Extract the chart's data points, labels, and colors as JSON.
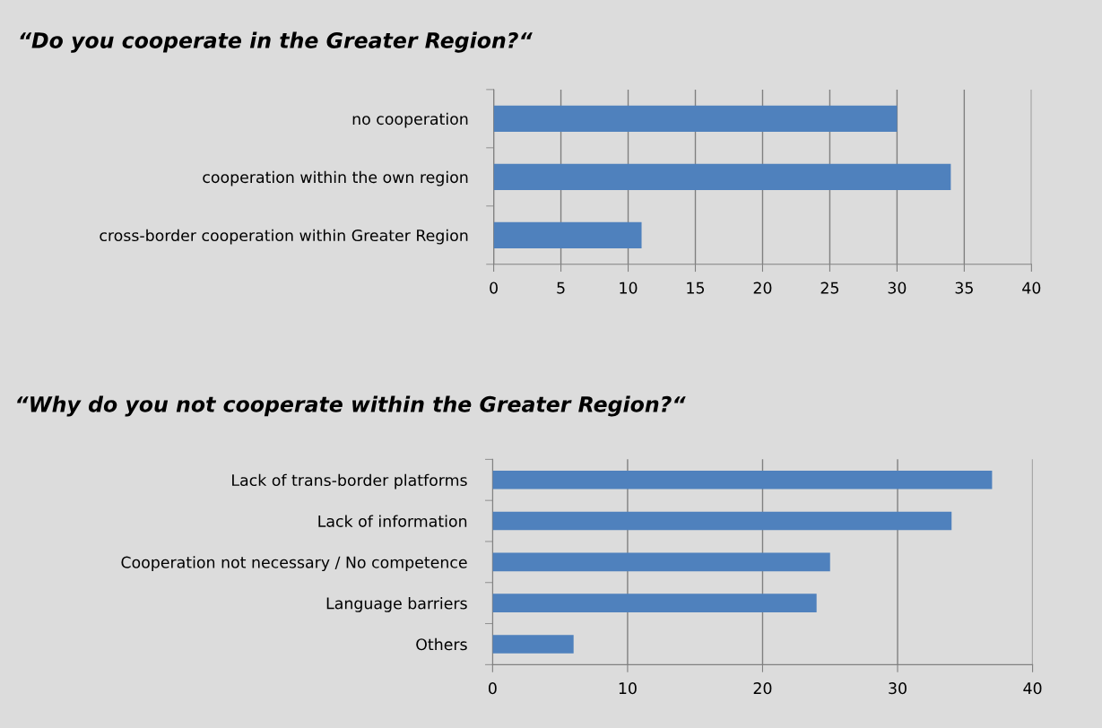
{
  "chart_data": [
    {
      "type": "bar",
      "orientation": "horizontal",
      "title": "“Do you cooperate in the Greater Region?“",
      "categories": [
        "no cooperation",
        "cooperation within the own region",
        "cross-border cooperation within Greater Region"
      ],
      "values": [
        30,
        34,
        11
      ],
      "color": "#4f81bd",
      "xlim": [
        0,
        40
      ],
      "xticks": [
        0,
        5,
        10,
        15,
        20,
        25,
        30,
        35,
        40
      ],
      "grid": "x"
    },
    {
      "type": "bar",
      "orientation": "horizontal",
      "title": "“Why do you not cooperate within the Greater Region?“",
      "categories": [
        "Lack of trans-border platforms",
        "Lack of information",
        "Cooperation not necessary / No competence",
        "Language barriers",
        "Others"
      ],
      "values": [
        37,
        34,
        25,
        24,
        6
      ],
      "color": "#4f81bd",
      "xlim": [
        0,
        40
      ],
      "xticks": [
        0,
        10,
        20,
        30,
        40
      ],
      "grid": "x"
    }
  ]
}
